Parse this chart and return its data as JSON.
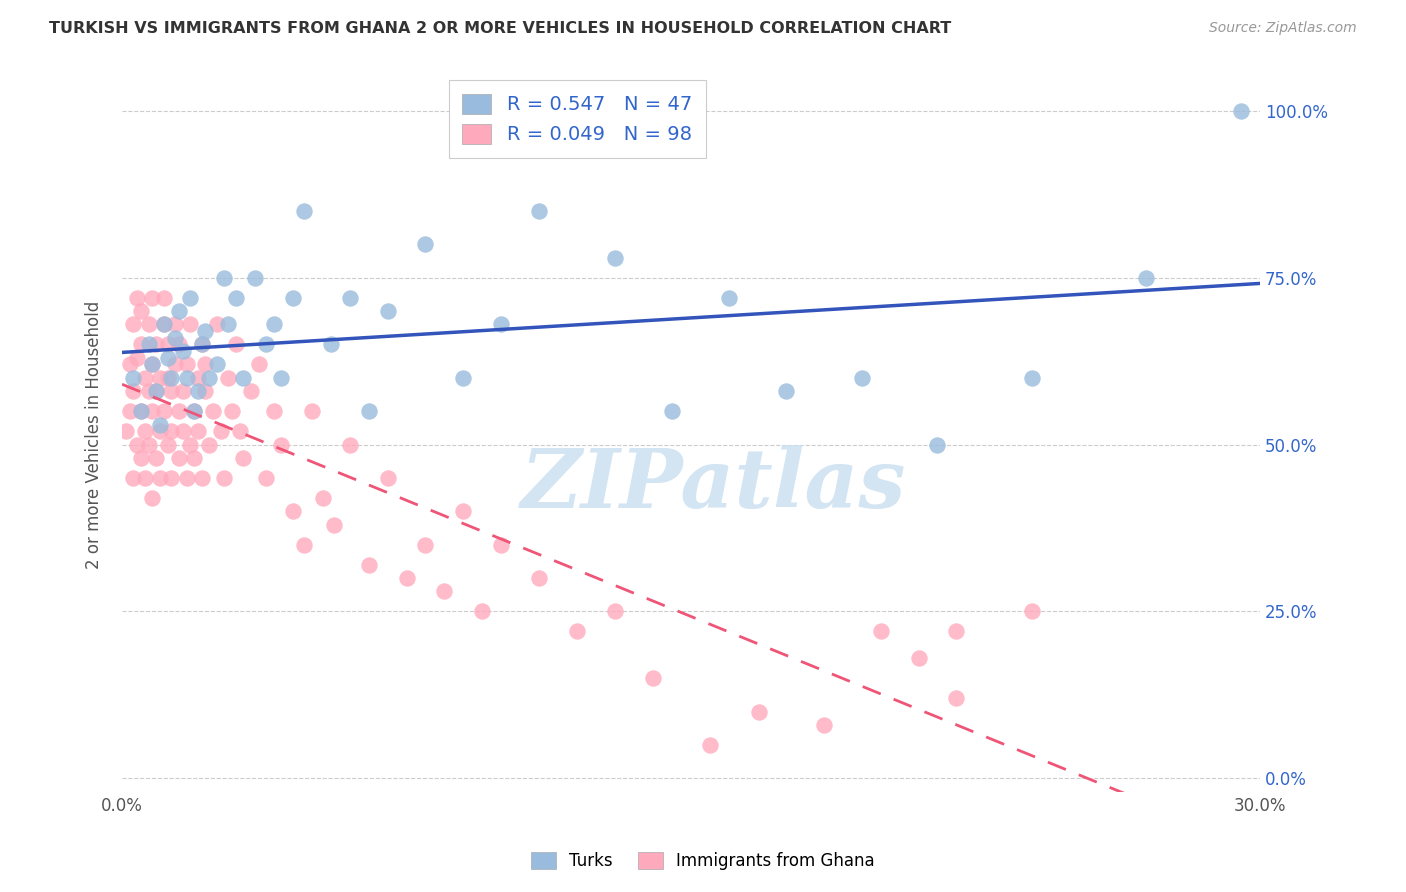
{
  "title": "TURKISH VS IMMIGRANTS FROM GHANA 2 OR MORE VEHICLES IN HOUSEHOLD CORRELATION CHART",
  "source": "Source: ZipAtlas.com",
  "ylabel": "2 or more Vehicles in Household",
  "x_min": 0.0,
  "x_max": 0.3,
  "y_min": -0.02,
  "y_max": 1.05,
  "x_ticks": [
    0.0,
    0.05,
    0.1,
    0.15,
    0.2,
    0.25,
    0.3
  ],
  "x_tick_labels": [
    "0.0%",
    "",
    "",
    "",
    "",
    "",
    "30.0%"
  ],
  "y_ticks_right": [
    0.0,
    0.25,
    0.5,
    0.75,
    1.0
  ],
  "y_tick_labels_right": [
    "0.0%",
    "25.0%",
    "50.0%",
    "75.0%",
    "100.0%"
  ],
  "blue_color": "#99BBDD",
  "pink_color": "#FFAABC",
  "blue_line_color": "#3355BB",
  "pink_line_color": "#EE5577",
  "legend_text_color": "#3366CC",
  "R_turks": 0.547,
  "N_turks": 47,
  "R_ghana": 0.049,
  "N_ghana": 98,
  "watermark": "ZIPatlas",
  "turks_x": [
    0.003,
    0.005,
    0.007,
    0.008,
    0.009,
    0.01,
    0.011,
    0.012,
    0.013,
    0.014,
    0.015,
    0.016,
    0.017,
    0.018,
    0.019,
    0.02,
    0.021,
    0.022,
    0.023,
    0.025,
    0.027,
    0.028,
    0.03,
    0.032,
    0.035,
    0.038,
    0.04,
    0.042,
    0.045,
    0.048,
    0.055,
    0.06,
    0.065,
    0.07,
    0.08,
    0.09,
    0.1,
    0.11,
    0.13,
    0.145,
    0.16,
    0.175,
    0.195,
    0.215,
    0.24,
    0.27,
    0.295
  ],
  "turks_y": [
    0.6,
    0.55,
    0.65,
    0.62,
    0.58,
    0.53,
    0.68,
    0.63,
    0.6,
    0.66,
    0.7,
    0.64,
    0.6,
    0.72,
    0.55,
    0.58,
    0.65,
    0.67,
    0.6,
    0.62,
    0.75,
    0.68,
    0.72,
    0.6,
    0.75,
    0.65,
    0.68,
    0.6,
    0.72,
    0.85,
    0.65,
    0.72,
    0.55,
    0.7,
    0.8,
    0.6,
    0.68,
    0.85,
    0.78,
    0.55,
    0.72,
    0.58,
    0.6,
    0.5,
    0.6,
    0.75,
    1.0
  ],
  "ghana_x": [
    0.001,
    0.002,
    0.002,
    0.003,
    0.003,
    0.003,
    0.004,
    0.004,
    0.004,
    0.005,
    0.005,
    0.005,
    0.005,
    0.006,
    0.006,
    0.006,
    0.007,
    0.007,
    0.007,
    0.008,
    0.008,
    0.008,
    0.008,
    0.009,
    0.009,
    0.009,
    0.01,
    0.01,
    0.01,
    0.011,
    0.011,
    0.011,
    0.012,
    0.012,
    0.012,
    0.013,
    0.013,
    0.013,
    0.014,
    0.014,
    0.015,
    0.015,
    0.015,
    0.016,
    0.016,
    0.017,
    0.017,
    0.018,
    0.018,
    0.019,
    0.019,
    0.02,
    0.02,
    0.021,
    0.021,
    0.022,
    0.022,
    0.023,
    0.024,
    0.025,
    0.026,
    0.027,
    0.028,
    0.029,
    0.03,
    0.031,
    0.032,
    0.034,
    0.036,
    0.038,
    0.04,
    0.042,
    0.045,
    0.048,
    0.05,
    0.053,
    0.056,
    0.06,
    0.065,
    0.07,
    0.075,
    0.08,
    0.085,
    0.09,
    0.095,
    0.1,
    0.11,
    0.12,
    0.13,
    0.14,
    0.155,
    0.168,
    0.185,
    0.2,
    0.21,
    0.22,
    0.24,
    0.22
  ],
  "ghana_y": [
    0.52,
    0.62,
    0.55,
    0.68,
    0.45,
    0.58,
    0.72,
    0.5,
    0.63,
    0.48,
    0.65,
    0.55,
    0.7,
    0.45,
    0.6,
    0.52,
    0.68,
    0.5,
    0.58,
    0.42,
    0.55,
    0.62,
    0.72,
    0.48,
    0.58,
    0.65,
    0.52,
    0.6,
    0.45,
    0.68,
    0.55,
    0.72,
    0.5,
    0.6,
    0.65,
    0.45,
    0.58,
    0.52,
    0.62,
    0.68,
    0.55,
    0.48,
    0.65,
    0.52,
    0.58,
    0.45,
    0.62,
    0.5,
    0.68,
    0.55,
    0.48,
    0.6,
    0.52,
    0.65,
    0.45,
    0.58,
    0.62,
    0.5,
    0.55,
    0.68,
    0.52,
    0.45,
    0.6,
    0.55,
    0.65,
    0.52,
    0.48,
    0.58,
    0.62,
    0.45,
    0.55,
    0.5,
    0.4,
    0.35,
    0.55,
    0.42,
    0.38,
    0.5,
    0.32,
    0.45,
    0.3,
    0.35,
    0.28,
    0.4,
    0.25,
    0.35,
    0.3,
    0.22,
    0.25,
    0.15,
    0.05,
    0.1,
    0.08,
    0.22,
    0.18,
    0.12,
    0.25,
    0.22
  ]
}
